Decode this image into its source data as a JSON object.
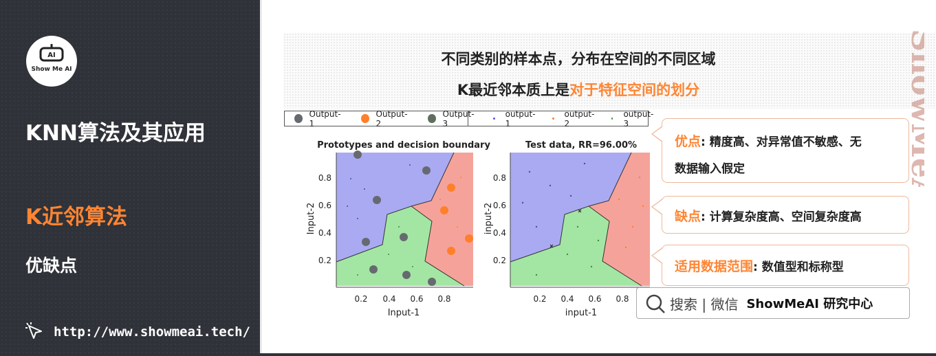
{
  "sidebar": {
    "logo_text": "Show Me AI",
    "title": "KNN算法及其应用",
    "section": "K近邻算法",
    "subsection": "优缺点",
    "url": "http://www.showmeai.tech/"
  },
  "header": {
    "line1": "不同类别的样本点，分布在空间的不同区域",
    "line2_prefix": "K最近邻本质上是",
    "line2_highlight": "对于特征空间的划分"
  },
  "watermark": "ShowMeAI",
  "legend": {
    "items": [
      "Output-1",
      "Output-2",
      "Output-3",
      "output-1",
      "output-2",
      "output-3"
    ],
    "colors": [
      "#666a70",
      "#ff7f2a",
      "#5f6f5f",
      "#5b5bd6",
      "#ff7f2a",
      "#3d8f3d"
    ]
  },
  "plot_left": {
    "title": "Prototypes and decision boundary",
    "xlabel": "Input-1",
    "ylabel": "Input-2",
    "xticks": [
      "0.2",
      "0.4",
      "0.6",
      "0.8"
    ],
    "yticks": [
      "0.2",
      "0.4",
      "0.6",
      "0.8"
    ]
  },
  "plot_right": {
    "title": "Test data, RR=96.00%",
    "xlabel": "input-1",
    "ylabel": "input-2",
    "xticks": [
      "0.2",
      "0.4",
      "0.6",
      "0.8"
    ],
    "yticks": [
      "0.2",
      "0.4",
      "0.6",
      "0.8"
    ]
  },
  "cards": [
    {
      "label": "优点",
      "text": ": 精度高、对异常值不敏感、无",
      "text2": "数据输入假定"
    },
    {
      "label": "缺点",
      "text": ": 计算复杂度高、空间复杂度高"
    },
    {
      "label": "适用数据范围",
      "text": ": 数值型和标称型"
    }
  ],
  "search": {
    "text": "搜索 | 微信",
    "brand": "ShowMeAI 研究中心"
  },
  "colors": {
    "accent": "#ff8533",
    "sidebar_bg": "#2f3238",
    "region_1": "#aaaaf2",
    "region_2": "#f5a39a",
    "region_3": "#a3e6a3"
  }
}
